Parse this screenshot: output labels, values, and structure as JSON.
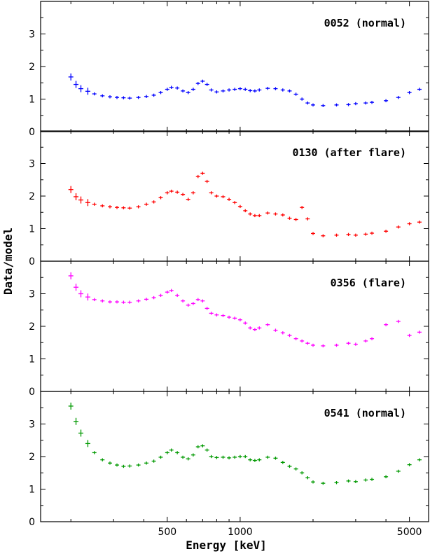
{
  "chart_data": {
    "type": "scatter",
    "xlabel": "Energy [keV]",
    "ylabel": "Data/model",
    "xscale": "log",
    "xlim": [
      150,
      6000
    ],
    "ylim": [
      0,
      4
    ],
    "yticks": [
      0,
      1,
      2,
      3
    ],
    "xticks": [
      500,
      1000,
      5000
    ],
    "panels": [
      {
        "label": "0052 (normal)",
        "color": "#0000ff",
        "points": [
          [
            200,
            1.68
          ],
          [
            210,
            1.45
          ],
          [
            220,
            1.32
          ],
          [
            235,
            1.24
          ],
          [
            250,
            1.16
          ],
          [
            270,
            1.1
          ],
          [
            290,
            1.07
          ],
          [
            310,
            1.05
          ],
          [
            330,
            1.04
          ],
          [
            350,
            1.03
          ],
          [
            380,
            1.05
          ],
          [
            410,
            1.08
          ],
          [
            440,
            1.12
          ],
          [
            470,
            1.2
          ],
          [
            500,
            1.3
          ],
          [
            520,
            1.36
          ],
          [
            550,
            1.34
          ],
          [
            580,
            1.25
          ],
          [
            610,
            1.2
          ],
          [
            640,
            1.3
          ],
          [
            670,
            1.48
          ],
          [
            700,
            1.55
          ],
          [
            730,
            1.45
          ],
          [
            760,
            1.28
          ],
          [
            800,
            1.22
          ],
          [
            850,
            1.25
          ],
          [
            900,
            1.28
          ],
          [
            950,
            1.3
          ],
          [
            1000,
            1.32
          ],
          [
            1050,
            1.3
          ],
          [
            1100,
            1.26
          ],
          [
            1150,
            1.25
          ],
          [
            1200,
            1.28
          ],
          [
            1300,
            1.33
          ],
          [
            1400,
            1.32
          ],
          [
            1500,
            1.28
          ],
          [
            1600,
            1.25
          ],
          [
            1700,
            1.15
          ],
          [
            1800,
            1.0
          ],
          [
            1900,
            0.88
          ],
          [
            2000,
            0.82
          ],
          [
            2200,
            0.8
          ],
          [
            2500,
            0.82
          ],
          [
            2800,
            0.83
          ],
          [
            3000,
            0.86
          ],
          [
            3300,
            0.88
          ],
          [
            3500,
            0.9
          ],
          [
            4000,
            0.95
          ],
          [
            4500,
            1.05
          ],
          [
            5000,
            1.2
          ],
          [
            5500,
            1.3
          ]
        ]
      },
      {
        "label": "0130 (after flare)",
        "color": "#ff0000",
        "points": [
          [
            200,
            2.2
          ],
          [
            210,
            1.98
          ],
          [
            220,
            1.88
          ],
          [
            235,
            1.8
          ],
          [
            250,
            1.75
          ],
          [
            270,
            1.7
          ],
          [
            290,
            1.67
          ],
          [
            310,
            1.65
          ],
          [
            330,
            1.64
          ],
          [
            350,
            1.63
          ],
          [
            380,
            1.67
          ],
          [
            410,
            1.75
          ],
          [
            440,
            1.82
          ],
          [
            470,
            1.95
          ],
          [
            500,
            2.1
          ],
          [
            520,
            2.15
          ],
          [
            550,
            2.12
          ],
          [
            580,
            2.05
          ],
          [
            610,
            1.9
          ],
          [
            640,
            2.1
          ],
          [
            670,
            2.6
          ],
          [
            700,
            2.7
          ],
          [
            730,
            2.45
          ],
          [
            760,
            2.1
          ],
          [
            800,
            2.0
          ],
          [
            850,
            1.98
          ],
          [
            900,
            1.9
          ],
          [
            950,
            1.8
          ],
          [
            1000,
            1.68
          ],
          [
            1050,
            1.55
          ],
          [
            1100,
            1.45
          ],
          [
            1150,
            1.4
          ],
          [
            1200,
            1.4
          ],
          [
            1300,
            1.48
          ],
          [
            1400,
            1.45
          ],
          [
            1500,
            1.42
          ],
          [
            1600,
            1.32
          ],
          [
            1700,
            1.28
          ],
          [
            1800,
            1.65
          ],
          [
            1900,
            1.3
          ],
          [
            2000,
            0.85
          ],
          [
            2200,
            0.78
          ],
          [
            2500,
            0.8
          ],
          [
            2800,
            0.82
          ],
          [
            3000,
            0.8
          ],
          [
            3300,
            0.83
          ],
          [
            3500,
            0.86
          ],
          [
            4000,
            0.92
          ],
          [
            4500,
            1.05
          ],
          [
            5000,
            1.15
          ],
          [
            5500,
            1.2
          ]
        ]
      },
      {
        "label": "0356 (flare)",
        "color": "#ff00ff",
        "points": [
          [
            200,
            3.55
          ],
          [
            210,
            3.2
          ],
          [
            220,
            3.0
          ],
          [
            235,
            2.9
          ],
          [
            250,
            2.82
          ],
          [
            270,
            2.78
          ],
          [
            290,
            2.75
          ],
          [
            310,
            2.75
          ],
          [
            330,
            2.74
          ],
          [
            350,
            2.74
          ],
          [
            380,
            2.78
          ],
          [
            410,
            2.83
          ],
          [
            440,
            2.88
          ],
          [
            470,
            2.95
          ],
          [
            500,
            3.05
          ],
          [
            520,
            3.1
          ],
          [
            550,
            2.95
          ],
          [
            580,
            2.78
          ],
          [
            610,
            2.65
          ],
          [
            640,
            2.7
          ],
          [
            670,
            2.82
          ],
          [
            700,
            2.78
          ],
          [
            730,
            2.55
          ],
          [
            760,
            2.4
          ],
          [
            800,
            2.35
          ],
          [
            850,
            2.33
          ],
          [
            900,
            2.28
          ],
          [
            950,
            2.25
          ],
          [
            1000,
            2.2
          ],
          [
            1050,
            2.1
          ],
          [
            1100,
            1.95
          ],
          [
            1150,
            1.9
          ],
          [
            1200,
            1.95
          ],
          [
            1300,
            2.05
          ],
          [
            1400,
            1.88
          ],
          [
            1500,
            1.8
          ],
          [
            1600,
            1.72
          ],
          [
            1700,
            1.62
          ],
          [
            1800,
            1.55
          ],
          [
            1900,
            1.48
          ],
          [
            2000,
            1.42
          ],
          [
            2200,
            1.4
          ],
          [
            2500,
            1.42
          ],
          [
            2800,
            1.48
          ],
          [
            3000,
            1.45
          ],
          [
            3300,
            1.55
          ],
          [
            3500,
            1.62
          ],
          [
            4000,
            2.05
          ],
          [
            4500,
            2.15
          ],
          [
            5000,
            1.72
          ],
          [
            5500,
            1.82
          ]
        ]
      },
      {
        "label": "0541 (normal)",
        "color": "#009900",
        "points": [
          [
            200,
            3.55
          ],
          [
            210,
            3.08
          ],
          [
            220,
            2.72
          ],
          [
            235,
            2.4
          ],
          [
            250,
            2.12
          ],
          [
            270,
            1.9
          ],
          [
            290,
            1.8
          ],
          [
            310,
            1.74
          ],
          [
            330,
            1.7
          ],
          [
            350,
            1.71
          ],
          [
            380,
            1.74
          ],
          [
            410,
            1.8
          ],
          [
            440,
            1.86
          ],
          [
            470,
            1.98
          ],
          [
            500,
            2.12
          ],
          [
            520,
            2.2
          ],
          [
            550,
            2.12
          ],
          [
            580,
            1.98
          ],
          [
            610,
            1.93
          ],
          [
            640,
            2.05
          ],
          [
            670,
            2.3
          ],
          [
            700,
            2.33
          ],
          [
            730,
            2.2
          ],
          [
            760,
            2.0
          ],
          [
            800,
            1.97
          ],
          [
            850,
            1.98
          ],
          [
            900,
            1.96
          ],
          [
            950,
            1.98
          ],
          [
            1000,
            2.0
          ],
          [
            1050,
            2.0
          ],
          [
            1100,
            1.9
          ],
          [
            1150,
            1.88
          ],
          [
            1200,
            1.9
          ],
          [
            1300,
            1.98
          ],
          [
            1400,
            1.95
          ],
          [
            1500,
            1.82
          ],
          [
            1600,
            1.7
          ],
          [
            1700,
            1.62
          ],
          [
            1800,
            1.5
          ],
          [
            1900,
            1.35
          ],
          [
            2000,
            1.22
          ],
          [
            2200,
            1.18
          ],
          [
            2500,
            1.2
          ],
          [
            2800,
            1.25
          ],
          [
            3000,
            1.23
          ],
          [
            3300,
            1.28
          ],
          [
            3500,
            1.3
          ],
          [
            4000,
            1.38
          ],
          [
            4500,
            1.55
          ],
          [
            5000,
            1.75
          ],
          [
            5500,
            1.9
          ]
        ]
      }
    ]
  }
}
